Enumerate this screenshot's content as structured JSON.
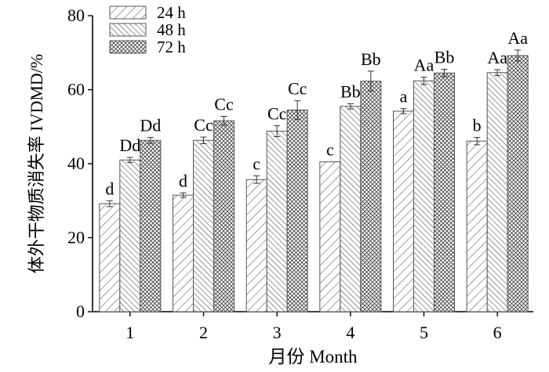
{
  "chart_data": {
    "type": "bar",
    "title": "",
    "xlabel": "月份  Month",
    "ylabel": "体外干物质消失率  IVDMD/%",
    "ylim": [
      0,
      80
    ],
    "yticks": [
      0,
      20,
      40,
      60,
      80
    ],
    "categories": [
      "1",
      "2",
      "3",
      "4",
      "5",
      "6"
    ],
    "grid": false,
    "legend_position": "top-left",
    "series": [
      {
        "name": "24 h",
        "pattern": "diagonal-hatch-light",
        "values": [
          29.2,
          31.5,
          35.7,
          40.5,
          54.2,
          46.1
        ],
        "errors": [
          0.8,
          0.6,
          1.0,
          0.0,
          0.7,
          1.0
        ],
        "labels": [
          "d",
          "d",
          "c",
          "c",
          "a",
          "b"
        ]
      },
      {
        "name": "48 h",
        "pattern": "diagonal-hatch-dense",
        "values": [
          41.0,
          46.3,
          48.8,
          55.5,
          62.4,
          64.6
        ],
        "errors": [
          0.7,
          0.9,
          1.5,
          0.7,
          1.0,
          0.8
        ],
        "labels": [
          "Dd",
          "Cc",
          "Cc",
          "Bb",
          "Aa",
          "Aa"
        ]
      },
      {
        "name": "72 h",
        "pattern": "cross-hatch",
        "values": [
          46.3,
          51.6,
          54.5,
          62.3,
          64.5,
          69.2
        ],
        "errors": [
          0.8,
          1.2,
          2.5,
          2.7,
          1.0,
          1.5
        ],
        "labels": [
          "Dd",
          "Cc",
          "Cc",
          "Bb",
          "Bb",
          "Aa"
        ]
      }
    ]
  }
}
